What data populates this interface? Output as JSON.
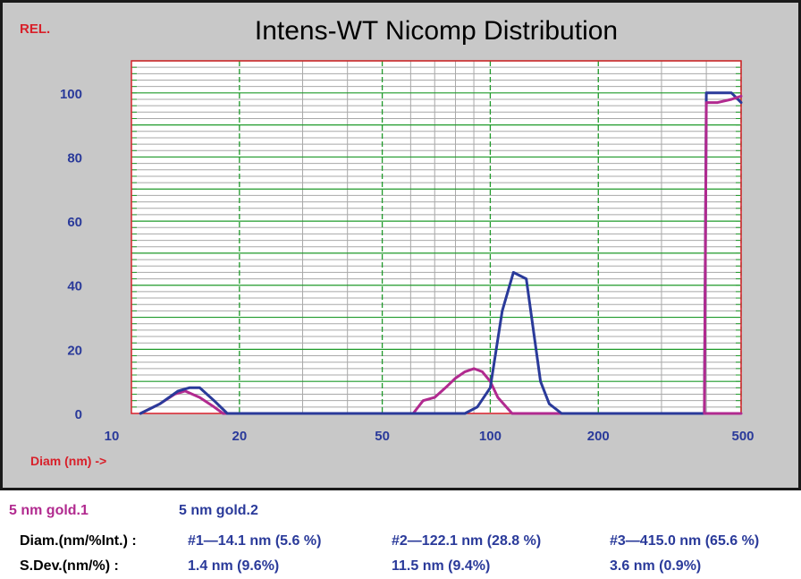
{
  "header": {
    "rel_label": "REL.",
    "title": "Intens-WT Nicomp Distribution"
  },
  "xaxis": {
    "label": "Diam (nm) ->"
  },
  "legend": {
    "series1": "5 nm gold.1",
    "series2": "5 nm gold.2"
  },
  "stats": {
    "diam_label": "Diam.(nm/%Int.) :",
    "sdev_label": "S.Dev.(nm/%) :",
    "diam": [
      "#1—14.1 nm (5.6 %)",
      "#2—122.1 nm (28.8 %)",
      "#3—415.0 nm (65.6 %)"
    ],
    "sdev": [
      "1.4 nm (9.6%)",
      "11.5 nm (9.4%)",
      "3.6 nm (0.9%)"
    ]
  },
  "colors": {
    "series1": "#b12a8f",
    "series2": "#2a3a9a",
    "grid_major": "#1f9a2a",
    "grid_minor": "#a8a8a8",
    "frame_red": "#d8202a",
    "tick_blue": "#2a3a9a"
  },
  "chart_data": {
    "type": "line",
    "title": "Intens-WT Nicomp Distribution",
    "xlabel": "Diam (nm) ->",
    "ylabel": "REL.",
    "x_scale": "log",
    "xlim": [
      10,
      500
    ],
    "ylim": [
      0,
      110
    ],
    "x_ticks": [
      10,
      20,
      50,
      100,
      200,
      500
    ],
    "y_ticks": [
      0,
      20,
      40,
      60,
      80,
      100
    ],
    "grid": true,
    "series": [
      {
        "name": "5 nm gold.1",
        "color": "#b12a8f",
        "x": [
          10.6,
          12.0,
          13.2,
          14.1,
          15.5,
          17.0,
          18.0,
          61,
          65,
          70,
          75,
          80,
          85,
          90,
          95,
          100,
          105,
          115,
          500
        ],
        "y": [
          0,
          3,
          6,
          7,
          5,
          2,
          0,
          0,
          4,
          5,
          8,
          11,
          13,
          14,
          13,
          10,
          5,
          0,
          0
        ]
      },
      {
        "name": "5 nm gold.2",
        "color": "#2a3a9a",
        "x": [
          10.6,
          12.0,
          13.5,
          14.5,
          15.5,
          17.0,
          18.5,
          85,
          92,
          100,
          108,
          116,
          126,
          138,
          146,
          158,
          360,
          380,
          395,
          400,
          410,
          440,
          470,
          500
        ],
        "y": [
          0,
          3,
          7,
          8,
          8,
          4,
          0,
          0,
          2,
          8,
          32,
          44,
          42,
          10,
          3,
          0,
          0,
          0,
          0,
          100,
          100,
          100,
          100,
          97
        ],
        "y_note": ""
      },
      {
        "name": "5 nm gold.1",
        "color": "#b12a8f",
        "x": [
          395,
          400,
          430,
          470,
          500
        ],
        "y": [
          0,
          97,
          97,
          98,
          99
        ]
      }
    ]
  }
}
